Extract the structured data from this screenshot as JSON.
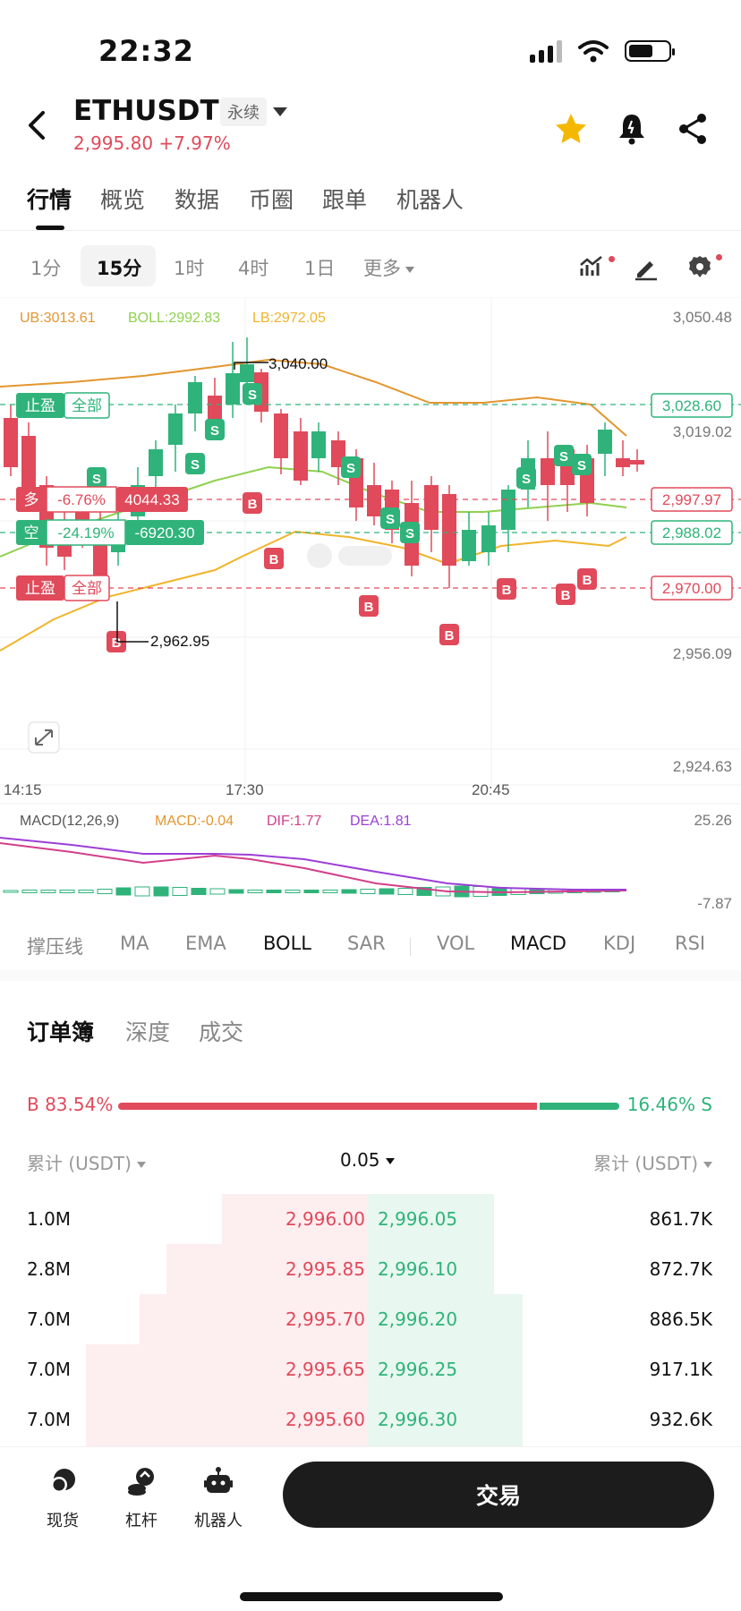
{
  "status": {
    "time": "22:32"
  },
  "header": {
    "pair": "ETHUSDT",
    "tag": "永续",
    "price_change": "2,995.80 +7.97%"
  },
  "main_tabs": [
    "行情",
    "概览",
    "数据",
    "币圈",
    "跟单",
    "机器人"
  ],
  "timeframes": [
    "1分",
    "15分",
    "1时",
    "4时",
    "1日",
    "更多"
  ],
  "chart": {
    "boll_legend": {
      "ub": "UB:3013.61",
      "boll": "BOLL:2992.83",
      "lb": "LB:2972.05"
    },
    "price_axis": [
      "3,050.48",
      "3,019.02",
      "2,956.09",
      "2,924.63"
    ],
    "high_label": "3,040.00",
    "low_label": "2,962.95",
    "tags": {
      "tp_top": "3,028.60",
      "long_price": "2,997.97",
      "short_price": "2,988.02",
      "sl_bottom": "2,970.00"
    },
    "orders": {
      "tp_label": "止盈",
      "all_label": "全部",
      "long_label": "多",
      "long_pct": "-6.76%",
      "long_val": "4044.33",
      "short_label": "空",
      "short_pct": "-24.19%",
      "short_val": "-6920.30",
      "sl_label": "止盈",
      "sl_all_label": "全部"
    },
    "time_axis": [
      "14:15",
      "17:30",
      "20:45"
    ],
    "macd_legend": {
      "name": "MACD(12,26,9)",
      "macd": "MACD:-0.04",
      "dif": "DIF:1.77",
      "dea": "DEA:1.81"
    },
    "macd_axis": [
      "25.26",
      "-7.87"
    ],
    "colors": {
      "up": "#2fb37a",
      "down": "#e04a5a",
      "ub": "#e3962e",
      "boll": "#8fd14f",
      "lb": "#f0b429",
      "dif": "#d33f8a",
      "dea": "#9b3fd6"
    }
  },
  "indicators": [
    "撑压线",
    "MA",
    "EMA",
    "BOLL",
    "SAR",
    "VOL",
    "MACD",
    "KDJ",
    "RSI"
  ],
  "orderbook": {
    "tabs": [
      "订单簿",
      "深度",
      "成交"
    ],
    "buy_ratio": "B 83.54%",
    "sell_ratio": "16.46% S",
    "buy_fraction": 0.8354,
    "head_left": "累计 (USDT)",
    "head_mid": "0.05",
    "head_right": "累计 (USDT)",
    "rows": [
      {
        "bid_total": "1.0M",
        "bid": "2,996.00",
        "ask": "2,996.05",
        "ask_total": "861.7K"
      },
      {
        "bid_total": "2.8M",
        "bid": "2,995.85",
        "ask": "2,996.10",
        "ask_total": "872.7K"
      },
      {
        "bid_total": "7.0M",
        "bid": "2,995.70",
        "ask": "2,996.20",
        "ask_total": "886.5K"
      },
      {
        "bid_total": "7.0M",
        "bid": "2,995.65",
        "ask": "2,996.25",
        "ask_total": "917.1K"
      },
      {
        "bid_total": "7.0M",
        "bid": "2,995.60",
        "ask": "2,996.30",
        "ask_total": "932.6K"
      }
    ]
  },
  "bottom_nav": {
    "spot": "现货",
    "margin": "杠杆",
    "bot": "机器人",
    "trade": "交易"
  }
}
